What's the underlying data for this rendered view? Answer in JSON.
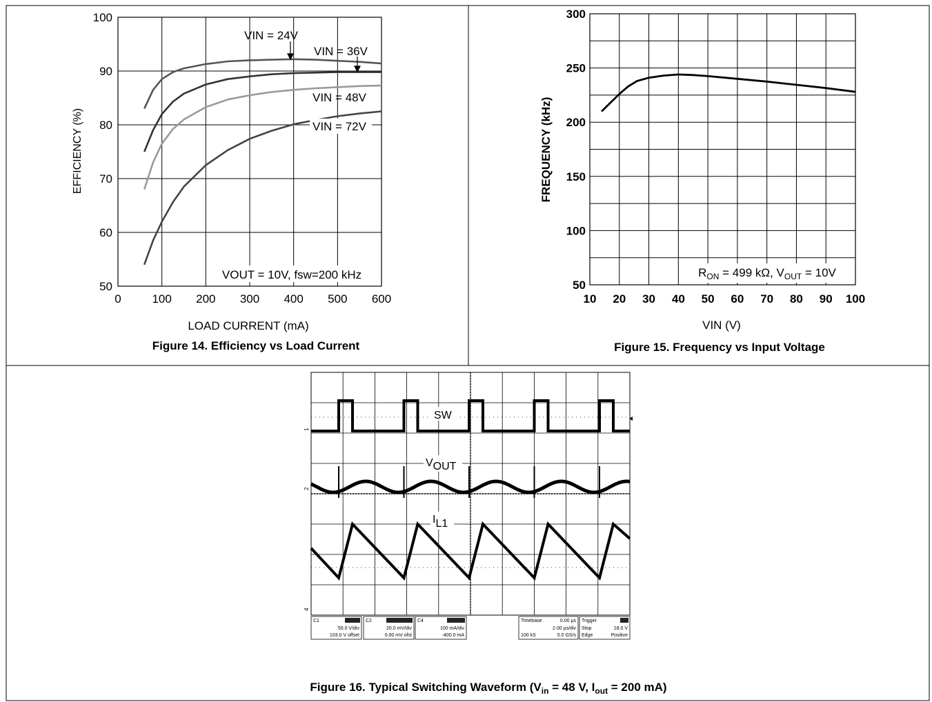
{
  "chart_data": [
    {
      "type": "line",
      "caption": "Figure 14. Efficiency vs Load Current",
      "xlabel": "LOAD CURRENT (mA)",
      "ylabel": "EFFICIENCY (%)",
      "xlim": [
        0,
        600
      ],
      "ylim": [
        50,
        100
      ],
      "xticks": [
        0,
        100,
        200,
        300,
        400,
        500,
        600
      ],
      "yticks": [
        50,
        60,
        70,
        80,
        90,
        100
      ],
      "grid": true,
      "annotation": "VOUT = 10V, fsw=200 kHz",
      "series": [
        {
          "name": "VIN = 24V",
          "color": "#555555",
          "x": [
            60,
            80,
            100,
            125,
            150,
            200,
            250,
            300,
            350,
            400,
            450,
            500,
            550,
            600
          ],
          "y": [
            83,
            86.5,
            88.5,
            89.8,
            90.5,
            91.3,
            91.8,
            92.0,
            92.1,
            92.2,
            92.1,
            91.9,
            91.7,
            91.4
          ]
        },
        {
          "name": "VIN = 36V",
          "color": "#333333",
          "x": [
            60,
            80,
            100,
            125,
            150,
            200,
            250,
            300,
            350,
            400,
            450,
            500,
            550,
            600
          ],
          "y": [
            75,
            79,
            82,
            84.3,
            85.8,
            87.5,
            88.5,
            89.0,
            89.4,
            89.6,
            89.7,
            89.8,
            89.8,
            89.8
          ]
        },
        {
          "name": "VIN = 48V",
          "color": "#999999",
          "x": [
            60,
            80,
            100,
            125,
            150,
            200,
            250,
            300,
            350,
            400,
            450,
            500,
            550,
            600
          ],
          "y": [
            68,
            73,
            76.5,
            79.2,
            81.0,
            83.3,
            84.7,
            85.5,
            86.1,
            86.5,
            86.8,
            87.0,
            87.2,
            87.3
          ]
        },
        {
          "name": "VIN = 72V",
          "color": "#444444",
          "x": [
            60,
            80,
            100,
            125,
            150,
            200,
            250,
            300,
            350,
            400,
            450,
            500,
            550,
            600
          ],
          "y": [
            54,
            58.5,
            62.0,
            65.6,
            68.5,
            72.5,
            75.3,
            77.4,
            78.9,
            80.1,
            80.9,
            81.6,
            82.1,
            82.5
          ]
        }
      ]
    },
    {
      "type": "line",
      "caption": "Figure 15. Frequency vs Input Voltage",
      "xlabel": "VIN (V)",
      "ylabel": "FREQUENCY (kHz)",
      "xlim": [
        10,
        100
      ],
      "ylim": [
        50,
        300
      ],
      "xticks": [
        10,
        20,
        30,
        40,
        50,
        60,
        70,
        80,
        90,
        100
      ],
      "yticks": [
        50,
        100,
        150,
        200,
        250,
        300
      ],
      "grid": true,
      "annotation": {
        "r_main": "R",
        "r_sub": "ON",
        "mid": " = 499 kΩ, V",
        "v_sub": "OUT",
        "end": " = 10V"
      },
      "series": [
        {
          "x": [
            14,
            17,
            20,
            23,
            26,
            30,
            35,
            40,
            45,
            50,
            60,
            70,
            80,
            90,
            100
          ],
          "y": [
            210,
            218,
            226,
            233,
            238,
            241,
            243,
            244,
            243.5,
            242.5,
            240,
            237.5,
            234.5,
            231.5,
            228
          ]
        }
      ]
    },
    {
      "type": "line",
      "caption": {
        "start": "Figure 16. Typical Switching Waveform (V",
        "sub1": "in",
        "mid": " = 48 V, I",
        "sub2": "out",
        "end": " = 200 mA)"
      },
      "traces": {
        "sw": "SW",
        "vout": {
          "main": "V",
          "sub": "OUT"
        },
        "il": {
          "main": "I",
          "sub": "L1"
        }
      },
      "readouts": [
        {
          "ch": "C1",
          "line1": "50.0 V/div",
          "line2": "103.0 V offset"
        },
        {
          "ch": "C2",
          "line1": "20.0 mV/div",
          "line2": "0.00 mV ofst"
        },
        {
          "ch": "C4",
          "line1": "100 mA/div",
          "line2": "-400.0 mA"
        }
      ],
      "timebase": {
        "label": "Timebase",
        "value": "0.00 µs",
        "div": "2.00 µs/div",
        "samples": "100 kS",
        "rate": "5.0 GS/s"
      },
      "trigger": {
        "label": "Trigger",
        "mode": "Stop",
        "level": "18.0 V",
        "type": "Edge",
        "slope": "Positive"
      }
    }
  ]
}
